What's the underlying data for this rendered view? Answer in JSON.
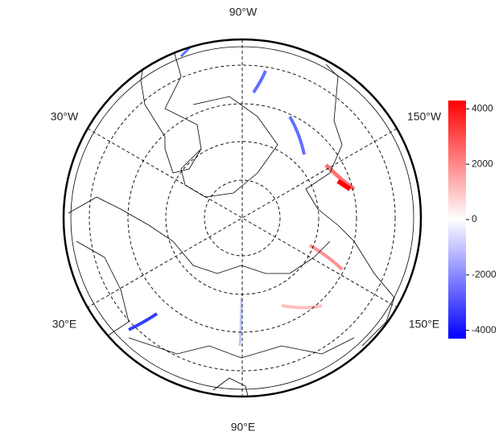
{
  "map": {
    "longitude_labels": [
      "90°W",
      "30°W",
      "150°W",
      "30°E",
      "150°E",
      "90°E"
    ],
    "colorbar": {
      "lim": [
        -4300,
        4300
      ],
      "ticks": [
        4000,
        2000,
        0,
        -2000,
        -4000
      ]
    }
  }
}
